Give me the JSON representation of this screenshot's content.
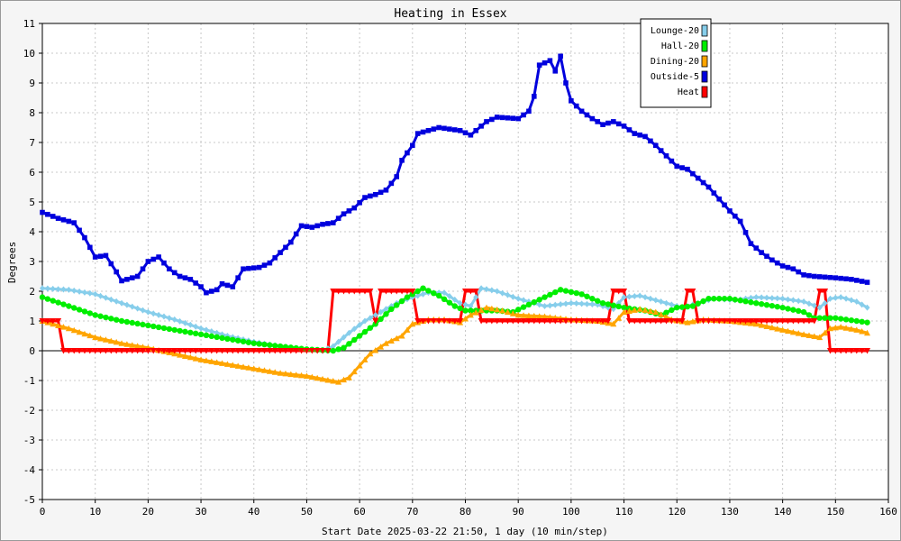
{
  "chart_data": {
    "type": "line",
    "title": "Heating in Essex",
    "xlabel": "Start Date 2025-03-22 21:50, 1 day (10 min/step)",
    "ylabel": "Degrees",
    "xlim": [
      0,
      160
    ],
    "ylim": [
      -5,
      11
    ],
    "xticks": [
      0,
      10,
      20,
      30,
      40,
      50,
      60,
      70,
      80,
      90,
      100,
      110,
      120,
      130,
      140,
      150,
      160
    ],
    "yticks": [
      -5,
      -4,
      -3,
      -2,
      -1,
      0,
      1,
      2,
      3,
      4,
      5,
      6,
      7,
      8,
      9,
      10,
      11
    ],
    "grid": true,
    "legend_position": "top-right",
    "series": [
      {
        "name": "Lounge-20",
        "color": "#87ceeb",
        "marker": "diamond",
        "points": [
          [
            0,
            2.1
          ],
          [
            5,
            2.05
          ],
          [
            10,
            1.9
          ],
          [
            15,
            1.6
          ],
          [
            20,
            1.3
          ],
          [
            25,
            1.05
          ],
          [
            30,
            0.75
          ],
          [
            35,
            0.5
          ],
          [
            40,
            0.3
          ],
          [
            45,
            0.15
          ],
          [
            50,
            0.05
          ],
          [
            53,
            0.0
          ],
          [
            55,
            0.15
          ],
          [
            58,
            0.6
          ],
          [
            61,
            1.0
          ],
          [
            64,
            1.3
          ],
          [
            67,
            1.6
          ],
          [
            70,
            1.8
          ],
          [
            73,
            1.95
          ],
          [
            76,
            1.95
          ],
          [
            79,
            1.6
          ],
          [
            81,
            1.5
          ],
          [
            83,
            2.1
          ],
          [
            86,
            2.0
          ],
          [
            90,
            1.75
          ],
          [
            95,
            1.5
          ],
          [
            100,
            1.6
          ],
          [
            105,
            1.55
          ],
          [
            108,
            1.4
          ],
          [
            110,
            1.8
          ],
          [
            113,
            1.85
          ],
          [
            117,
            1.65
          ],
          [
            121,
            1.45
          ],
          [
            124,
            1.6
          ],
          [
            127,
            1.75
          ],
          [
            131,
            1.7
          ],
          [
            135,
            1.8
          ],
          [
            140,
            1.75
          ],
          [
            144,
            1.65
          ],
          [
            147,
            1.45
          ],
          [
            149,
            1.75
          ],
          [
            151,
            1.8
          ],
          [
            154,
            1.65
          ],
          [
            156,
            1.45
          ]
        ]
      },
      {
        "name": "Hall-20",
        "color": "#00ee00",
        "marker": "circle",
        "points": [
          [
            0,
            1.8
          ],
          [
            5,
            1.5
          ],
          [
            10,
            1.2
          ],
          [
            15,
            1.0
          ],
          [
            20,
            0.85
          ],
          [
            25,
            0.7
          ],
          [
            30,
            0.55
          ],
          [
            35,
            0.4
          ],
          [
            40,
            0.25
          ],
          [
            45,
            0.15
          ],
          [
            50,
            0.05
          ],
          [
            55,
            0.0
          ],
          [
            57,
            0.1
          ],
          [
            60,
            0.5
          ],
          [
            63,
            0.9
          ],
          [
            66,
            1.4
          ],
          [
            69,
            1.8
          ],
          [
            72,
            2.1
          ],
          [
            75,
            1.85
          ],
          [
            78,
            1.5
          ],
          [
            80,
            1.35
          ],
          [
            83,
            1.35
          ],
          [
            86,
            1.35
          ],
          [
            89,
            1.3
          ],
          [
            92,
            1.55
          ],
          [
            95,
            1.8
          ],
          [
            98,
            2.05
          ],
          [
            102,
            1.9
          ],
          [
            106,
            1.6
          ],
          [
            110,
            1.45
          ],
          [
            114,
            1.35
          ],
          [
            117,
            1.2
          ],
          [
            120,
            1.45
          ],
          [
            123,
            1.5
          ],
          [
            126,
            1.75
          ],
          [
            130,
            1.75
          ],
          [
            135,
            1.6
          ],
          [
            140,
            1.45
          ],
          [
            144,
            1.3
          ],
          [
            146,
            1.1
          ],
          [
            150,
            1.1
          ],
          [
            154,
            1.0
          ],
          [
            156,
            0.95
          ]
        ]
      },
      {
        "name": "Dining-20",
        "color": "#ffa500",
        "marker": "triangle",
        "points": [
          [
            0,
            1.0
          ],
          [
            5,
            0.75
          ],
          [
            10,
            0.45
          ],
          [
            15,
            0.25
          ],
          [
            20,
            0.1
          ],
          [
            25,
            -0.1
          ],
          [
            30,
            -0.3
          ],
          [
            35,
            -0.45
          ],
          [
            40,
            -0.6
          ],
          [
            45,
            -0.75
          ],
          [
            50,
            -0.85
          ],
          [
            53,
            -0.95
          ],
          [
            56,
            -1.05
          ],
          [
            58,
            -0.9
          ],
          [
            60,
            -0.5
          ],
          [
            62,
            -0.1
          ],
          [
            65,
            0.25
          ],
          [
            68,
            0.5
          ],
          [
            70,
            0.9
          ],
          [
            73,
            1.05
          ],
          [
            76,
            1.05
          ],
          [
            79,
            0.95
          ],
          [
            81,
            1.2
          ],
          [
            84,
            1.45
          ],
          [
            87,
            1.35
          ],
          [
            90,
            1.2
          ],
          [
            95,
            1.15
          ],
          [
            100,
            1.05
          ],
          [
            105,
            1.0
          ],
          [
            108,
            0.9
          ],
          [
            110,
            1.3
          ],
          [
            113,
            1.4
          ],
          [
            116,
            1.3
          ],
          [
            119,
            1.05
          ],
          [
            122,
            0.95
          ],
          [
            125,
            1.05
          ],
          [
            130,
            1.0
          ],
          [
            135,
            0.9
          ],
          [
            140,
            0.7
          ],
          [
            144,
            0.55
          ],
          [
            147,
            0.45
          ],
          [
            149,
            0.75
          ],
          [
            151,
            0.8
          ],
          [
            154,
            0.7
          ],
          [
            156,
            0.6
          ]
        ]
      },
      {
        "name": "Outside-5",
        "color": "#0000dd",
        "marker": "square",
        "points": [
          [
            0,
            4.65
          ],
          [
            3,
            4.45
          ],
          [
            6,
            4.3
          ],
          [
            8,
            3.8
          ],
          [
            10,
            3.15
          ],
          [
            12,
            3.2
          ],
          [
            14,
            2.65
          ],
          [
            15,
            2.35
          ],
          [
            18,
            2.5
          ],
          [
            20,
            3.0
          ],
          [
            22,
            3.15
          ],
          [
            24,
            2.75
          ],
          [
            26,
            2.5
          ],
          [
            28,
            2.4
          ],
          [
            30,
            2.15
          ],
          [
            31,
            1.95
          ],
          [
            33,
            2.05
          ],
          [
            34,
            2.25
          ],
          [
            36,
            2.15
          ],
          [
            38,
            2.75
          ],
          [
            41,
            2.8
          ],
          [
            43,
            2.95
          ],
          [
            45,
            3.3
          ],
          [
            47,
            3.65
          ],
          [
            49,
            4.2
          ],
          [
            51,
            4.15
          ],
          [
            53,
            4.25
          ],
          [
            55,
            4.3
          ],
          [
            57,
            4.6
          ],
          [
            59,
            4.8
          ],
          [
            61,
            5.15
          ],
          [
            63,
            5.25
          ],
          [
            65,
            5.4
          ],
          [
            67,
            5.85
          ],
          [
            68,
            6.4
          ],
          [
            70,
            6.9
          ],
          [
            71,
            7.3
          ],
          [
            73,
            7.4
          ],
          [
            75,
            7.5
          ],
          [
            77,
            7.45
          ],
          [
            79,
            7.4
          ],
          [
            81,
            7.25
          ],
          [
            84,
            7.7
          ],
          [
            86,
            7.85
          ],
          [
            90,
            7.8
          ],
          [
            92,
            8.05
          ],
          [
            93,
            8.55
          ],
          [
            94,
            9.6
          ],
          [
            96,
            9.75
          ],
          [
            97,
            9.4
          ],
          [
            98,
            9.9
          ],
          [
            99,
            9.0
          ],
          [
            100,
            8.4
          ],
          [
            102,
            8.05
          ],
          [
            104,
            7.8
          ],
          [
            106,
            7.6
          ],
          [
            108,
            7.7
          ],
          [
            110,
            7.55
          ],
          [
            112,
            7.3
          ],
          [
            114,
            7.2
          ],
          [
            116,
            6.9
          ],
          [
            118,
            6.55
          ],
          [
            120,
            6.2
          ],
          [
            122,
            6.1
          ],
          [
            124,
            5.8
          ],
          [
            126,
            5.5
          ],
          [
            128,
            5.1
          ],
          [
            130,
            4.7
          ],
          [
            132,
            4.35
          ],
          [
            134,
            3.6
          ],
          [
            136,
            3.3
          ],
          [
            138,
            3.05
          ],
          [
            140,
            2.85
          ],
          [
            142,
            2.75
          ],
          [
            144,
            2.55
          ],
          [
            146,
            2.5
          ],
          [
            150,
            2.45
          ],
          [
            153,
            2.4
          ],
          [
            156,
            2.3
          ]
        ]
      },
      {
        "name": "Heat",
        "color": "#ff0000",
        "marker": "triangle-down",
        "points": [
          [
            0,
            1
          ],
          [
            3,
            1
          ],
          [
            4,
            0
          ],
          [
            54,
            0
          ],
          [
            55,
            2
          ],
          [
            62,
            2
          ],
          [
            63,
            1
          ],
          [
            64,
            2
          ],
          [
            70,
            2
          ],
          [
            71,
            1
          ],
          [
            79,
            1
          ],
          [
            80,
            2
          ],
          [
            82,
            2
          ],
          [
            83,
            1
          ],
          [
            107,
            1
          ],
          [
            108,
            2
          ],
          [
            110,
            2
          ],
          [
            111,
            1
          ],
          [
            121,
            1
          ],
          [
            122,
            2
          ],
          [
            123,
            2
          ],
          [
            124,
            1
          ],
          [
            146,
            1
          ],
          [
            147,
            2
          ],
          [
            148,
            2
          ],
          [
            149,
            0
          ],
          [
            156,
            0
          ]
        ]
      }
    ]
  }
}
